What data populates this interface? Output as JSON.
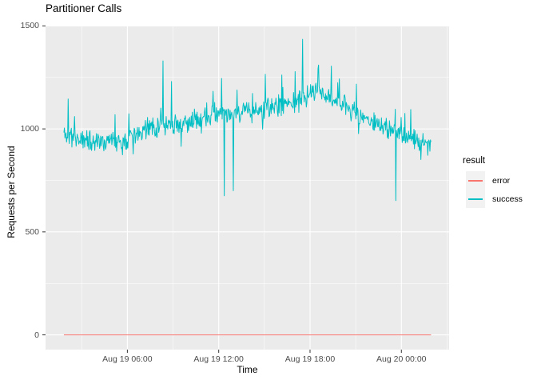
{
  "chart_data": {
    "type": "line",
    "title": "Partitioner Calls",
    "xlabel": "Time",
    "ylabel": "Requests per Second",
    "panel_background": "#EBEBEB",
    "grid_color": "#FFFFFF",
    "tick_mark_color": "#333333",
    "tick_label_color": "#4D4D4D",
    "legend": {
      "title": "result",
      "position": "right",
      "entries": [
        {
          "label": "error",
          "color": "#F8766D"
        },
        {
          "label": "success",
          "color": "#00BFC4"
        }
      ]
    },
    "x_axis": {
      "unit": "hours since Aug 19 00:00",
      "range": [
        0.625,
        27.135
      ],
      "major_ticks": [
        {
          "t": 6,
          "label": "Aug 19 06:00"
        },
        {
          "t": 12,
          "label": "Aug 19 12:00"
        },
        {
          "t": 18,
          "label": "Aug 19 18:00"
        },
        {
          "t": 24,
          "label": "Aug 20 00:00"
        }
      ],
      "minor_ticks": [
        3,
        9,
        15,
        21,
        27
      ]
    },
    "y_axis": {
      "range": [
        -71.5,
        1501.5
      ],
      "major_ticks": [
        {
          "v": 0,
          "label": "0"
        },
        {
          "v": 500,
          "label": "500"
        },
        {
          "v": 1000,
          "label": "1000"
        },
        {
          "v": 1500,
          "label": "1500"
        }
      ],
      "minor_ticks": [
        250,
        750,
        1250
      ]
    },
    "series": [
      {
        "name": "error",
        "color": "#F8766D",
        "constant": 0,
        "t_start": 1.83,
        "t_end": 25.95
      },
      {
        "name": "success",
        "color": "#00BFC4",
        "t_start": 1.83,
        "t_end": 25.95,
        "sample_step_hours": 0.035,
        "noise": {
          "seed": 11,
          "amplitude": 58,
          "up_spike_rate": 0.05,
          "up_spike_size": [
            30,
            140
          ],
          "down_spike_rate": 0.018,
          "down_spike_size": [
            40,
            115
          ]
        },
        "trend": [
          [
            1.83,
            980
          ],
          [
            2.3,
            965
          ],
          [
            3,
            950
          ],
          [
            4,
            945
          ],
          [
            5,
            935
          ],
          [
            5.8,
            940
          ],
          [
            6.5,
            975
          ],
          [
            7.5,
            1010
          ],
          [
            8.5,
            1020
          ],
          [
            9.5,
            1015
          ],
          [
            10.5,
            1045
          ],
          [
            11.5,
            1065
          ],
          [
            12.5,
            1070
          ],
          [
            13.5,
            1075
          ],
          [
            14.5,
            1090
          ],
          [
            15.5,
            1105
          ],
          [
            16.5,
            1125
          ],
          [
            17.3,
            1140
          ],
          [
            18.3,
            1175
          ],
          [
            19,
            1165
          ],
          [
            20,
            1125
          ],
          [
            21,
            1075
          ],
          [
            22,
            1030
          ],
          [
            23,
            1000
          ],
          [
            24,
            975
          ],
          [
            25,
            940
          ],
          [
            25.95,
            915
          ]
        ],
        "spikes": [
          [
            2.1,
            1145
          ],
          [
            8.35,
            1330
          ],
          [
            8.9,
            1230
          ],
          [
            12.2,
            1245
          ],
          [
            12.35,
            675
          ],
          [
            12.95,
            700
          ],
          [
            15.05,
            1265
          ],
          [
            17.5,
            1435
          ],
          [
            18.55,
            1310
          ],
          [
            19.4,
            1305
          ],
          [
            23.62,
            652
          ]
        ]
      }
    ]
  }
}
